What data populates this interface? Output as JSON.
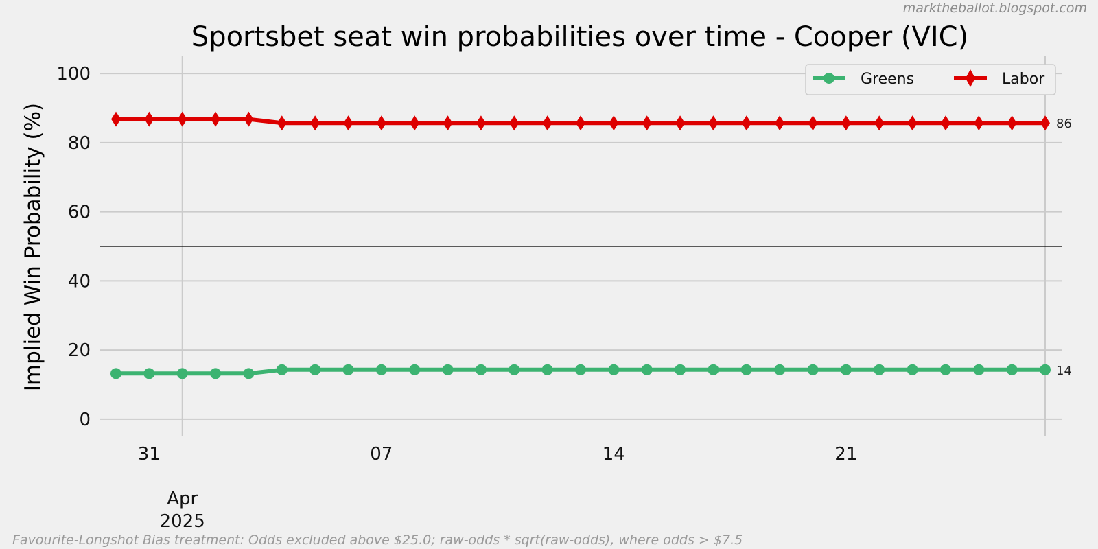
{
  "chart_data": {
    "type": "line",
    "title": "Sportsbet seat win probabilities over time - Cooper (VIC)",
    "ylabel": "Implied Win Probability (%)",
    "xlabel": "",
    "ylim": [
      -5,
      105
    ],
    "yticks": [
      0,
      20,
      40,
      60,
      80,
      100
    ],
    "reference_line": 50,
    "grid": true,
    "legend_placement": "top-right",
    "x": [
      "2025-03-30",
      "2025-03-31",
      "2025-04-01",
      "2025-04-02",
      "2025-04-03",
      "2025-04-04",
      "2025-04-05",
      "2025-04-06",
      "2025-04-07",
      "2025-04-08",
      "2025-04-09",
      "2025-04-10",
      "2025-04-11",
      "2025-04-12",
      "2025-04-13",
      "2025-04-14",
      "2025-04-15",
      "2025-04-16",
      "2025-04-17",
      "2025-04-18",
      "2025-04-19",
      "2025-04-20",
      "2025-04-21",
      "2025-04-22",
      "2025-04-23",
      "2025-04-24",
      "2025-04-25",
      "2025-04-26",
      "2025-04-27"
    ],
    "xticks": [
      {
        "date": "2025-03-31",
        "label": "31"
      },
      {
        "date": "2025-04-07",
        "label": "07"
      },
      {
        "date": "2025-04-14",
        "label": "14"
      },
      {
        "date": "2025-04-21",
        "label": "21"
      }
    ],
    "month_label": {
      "date": "2025-04-01",
      "line1": "Apr",
      "line2": "2025"
    },
    "series": [
      {
        "name": "Greens",
        "color": "#3cb371",
        "marker": "circle",
        "end_label": "14",
        "values": [
          13.2,
          13.2,
          13.2,
          13.2,
          13.2,
          14.3,
          14.3,
          14.3,
          14.3,
          14.3,
          14.3,
          14.3,
          14.3,
          14.3,
          14.3,
          14.3,
          14.3,
          14.3,
          14.3,
          14.3,
          14.3,
          14.3,
          14.3,
          14.3,
          14.3,
          14.3,
          14.3,
          14.3,
          14.3
        ]
      },
      {
        "name": "Labor",
        "color": "#dd0000",
        "marker": "diamond",
        "end_label": "86",
        "values": [
          86.8,
          86.8,
          86.8,
          86.8,
          86.8,
          85.7,
          85.7,
          85.7,
          85.7,
          85.7,
          85.7,
          85.7,
          85.7,
          85.7,
          85.7,
          85.7,
          85.7,
          85.7,
          85.7,
          85.7,
          85.7,
          85.7,
          85.7,
          85.7,
          85.7,
          85.7,
          85.7,
          85.7,
          85.7
        ]
      }
    ]
  },
  "watermark": "marktheballot.blogspot.com",
  "footnote": "Favourite-Longshot Bias treatment: Odds excluded above $25.0; raw-odds * sqrt(raw-odds), where odds > $7.5"
}
